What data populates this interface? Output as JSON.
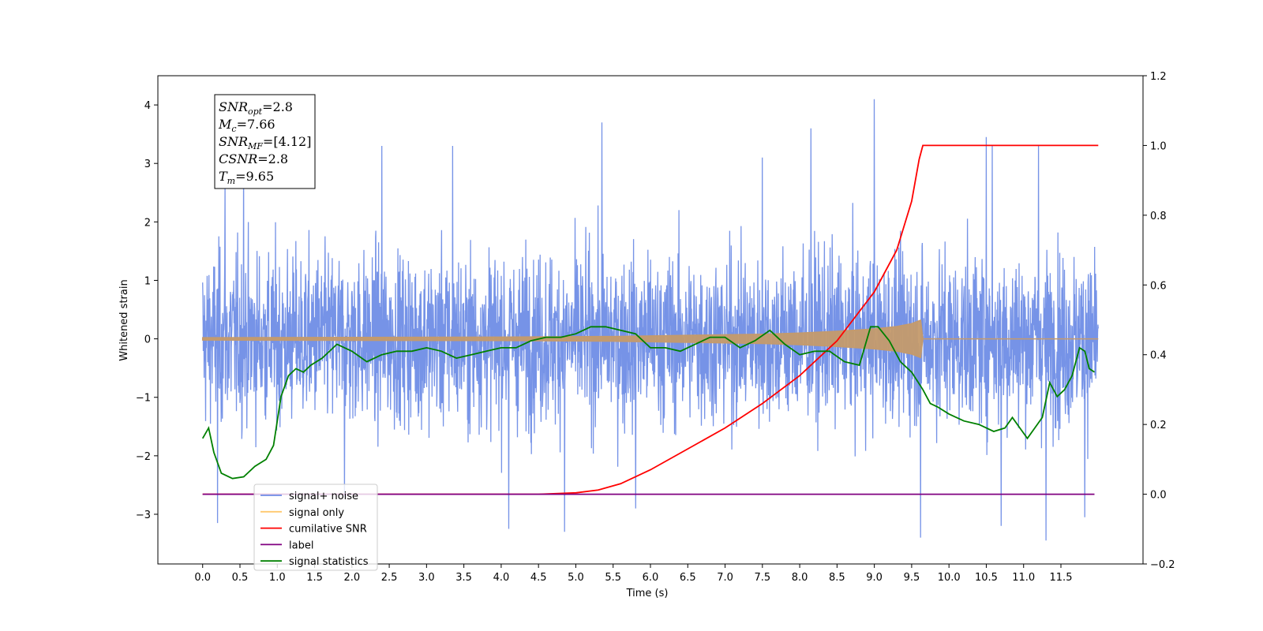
{
  "chart_data": {
    "type": "line",
    "xlabel": "Time (s)",
    "ylabel": "Whitened strain",
    "xlim": [
      -0.6,
      12.6
    ],
    "ylim_left": [
      -3.85,
      4.5
    ],
    "ylim_right": [
      -0.2,
      1.2
    ],
    "x_ticks": [
      "0.0",
      "0.5",
      "1.0",
      "1.5",
      "2.0",
      "2.5",
      "3.0",
      "3.5",
      "4.0",
      "4.5",
      "5.0",
      "5.5",
      "6.0",
      "6.5",
      "7.0",
      "7.5",
      "8.0",
      "8.5",
      "9.0",
      "9.5",
      "10.0",
      "10.5",
      "11.0",
      "11.5"
    ],
    "y_ticks_left": [
      "−3",
      "−2",
      "−1",
      "0",
      "1",
      "2",
      "3",
      "4"
    ],
    "y_ticks_right": [
      "−0.2",
      "0.0",
      "0.2",
      "0.4",
      "0.6",
      "0.8",
      "1.0",
      "1.2"
    ],
    "annotations": [
      {
        "base": "SNR",
        "sub": "opt",
        "value": "=2.8"
      },
      {
        "base": "M",
        "sub": "c",
        "value": "=7.66"
      },
      {
        "base": "SNR",
        "sub": "MF",
        "value": "=[4.12]"
      },
      {
        "base": "CSNR",
        "sub": "",
        "value": "=2.8"
      },
      {
        "base": "T",
        "sub": "m",
        "value": "=9.65"
      }
    ],
    "legend": {
      "position": "lower-left",
      "entries": [
        {
          "label": "signal+ noise",
          "color": "#6f8de6"
        },
        {
          "label": "signal only",
          "color": "#ffc96e"
        },
        {
          "label": "cumilative SNR",
          "color": "#ff0000"
        },
        {
          "label": "label",
          "color": "#800080"
        },
        {
          "label": "signal statistics",
          "color": "#008000"
        }
      ]
    },
    "series": [
      {
        "name": "signal+ noise",
        "axis": "left",
        "color": "#6f8de6",
        "x_range": [
          0.0,
          12.0
        ],
        "envelope_typical": [
          -1.6,
          1.7
        ],
        "peaks": [
          [
            0.3,
            2.7
          ],
          [
            0.55,
            3.1
          ],
          [
            2.4,
            3.3
          ],
          [
            3.35,
            3.3
          ],
          [
            5.35,
            3.7
          ],
          [
            7.5,
            3.1
          ],
          [
            8.15,
            3.6
          ],
          [
            9.0,
            4.1
          ],
          [
            10.5,
            3.45
          ],
          [
            10.58,
            3.3
          ],
          [
            11.2,
            3.3
          ]
        ],
        "troughs": [
          [
            0.2,
            -3.15
          ],
          [
            1.9,
            -2.7
          ],
          [
            4.1,
            -3.25
          ],
          [
            4.85,
            -3.3
          ],
          [
            5.8,
            -2.9
          ],
          [
            9.62,
            -3.4
          ],
          [
            10.7,
            -3.2
          ],
          [
            11.3,
            -3.45
          ],
          [
            11.82,
            -3.05
          ]
        ]
      },
      {
        "name": "signal only",
        "axis": "left",
        "color": "#ffc96e",
        "x": [
          0.0,
          4.0,
          5.5,
          6.5,
          7.5,
          8.0,
          8.5,
          9.0,
          9.3,
          9.5,
          9.62,
          9.65,
          12.0
        ],
        "y": [
          0.02,
          0.03,
          0.04,
          0.06,
          0.08,
          0.1,
          0.13,
          0.17,
          0.21,
          0.26,
          0.32,
          0.0,
          0.0
        ]
      },
      {
        "name": "cumilative SNR",
        "axis": "right",
        "color": "#ff0000",
        "x": [
          0.0,
          4.5,
          5.0,
          5.3,
          5.6,
          6.0,
          6.5,
          7.0,
          7.5,
          8.0,
          8.5,
          9.0,
          9.3,
          9.5,
          9.6,
          9.65,
          12.0
        ],
        "y": [
          0.0,
          0.0,
          0.004,
          0.012,
          0.03,
          0.07,
          0.13,
          0.19,
          0.26,
          0.34,
          0.44,
          0.58,
          0.7,
          0.84,
          0.96,
          1.0,
          1.0
        ]
      },
      {
        "name": "label",
        "axis": "right",
        "color": "#800080",
        "x": [
          0.0,
          11.95
        ],
        "y": [
          0.0,
          0.0
        ]
      },
      {
        "name": "signal statistics",
        "axis": "right",
        "color": "#008000",
        "x": [
          0.0,
          0.08,
          0.15,
          0.25,
          0.4,
          0.55,
          0.7,
          0.85,
          0.95,
          1.05,
          1.15,
          1.25,
          1.35,
          1.45,
          1.6,
          1.8,
          2.0,
          2.2,
          2.4,
          2.6,
          2.8,
          3.0,
          3.2,
          3.4,
          3.6,
          3.8,
          4.0,
          4.2,
          4.4,
          4.6,
          4.8,
          5.0,
          5.2,
          5.4,
          5.6,
          5.8,
          6.0,
          6.2,
          6.4,
          6.6,
          6.8,
          7.0,
          7.2,
          7.4,
          7.6,
          7.8,
          8.0,
          8.2,
          8.4,
          8.6,
          8.8,
          8.95,
          9.05,
          9.2,
          9.35,
          9.5,
          9.65,
          9.75,
          9.85,
          10.0,
          10.2,
          10.4,
          10.6,
          10.75,
          10.85,
          10.95,
          11.05,
          11.15,
          11.25,
          11.35,
          11.45,
          11.55,
          11.65,
          11.75,
          11.82,
          11.88,
          11.95
        ],
        "y": [
          0.16,
          0.19,
          0.12,
          0.06,
          0.045,
          0.05,
          0.08,
          0.1,
          0.14,
          0.28,
          0.34,
          0.36,
          0.35,
          0.37,
          0.39,
          0.43,
          0.41,
          0.38,
          0.4,
          0.41,
          0.41,
          0.42,
          0.41,
          0.39,
          0.4,
          0.41,
          0.42,
          0.42,
          0.44,
          0.45,
          0.45,
          0.46,
          0.48,
          0.48,
          0.47,
          0.46,
          0.42,
          0.42,
          0.41,
          0.43,
          0.45,
          0.45,
          0.42,
          0.44,
          0.47,
          0.43,
          0.4,
          0.41,
          0.41,
          0.38,
          0.37,
          0.48,
          0.48,
          0.44,
          0.38,
          0.35,
          0.3,
          0.26,
          0.25,
          0.23,
          0.21,
          0.2,
          0.18,
          0.19,
          0.22,
          0.19,
          0.16,
          0.19,
          0.22,
          0.32,
          0.28,
          0.3,
          0.34,
          0.42,
          0.41,
          0.36,
          0.35
        ]
      }
    ]
  }
}
